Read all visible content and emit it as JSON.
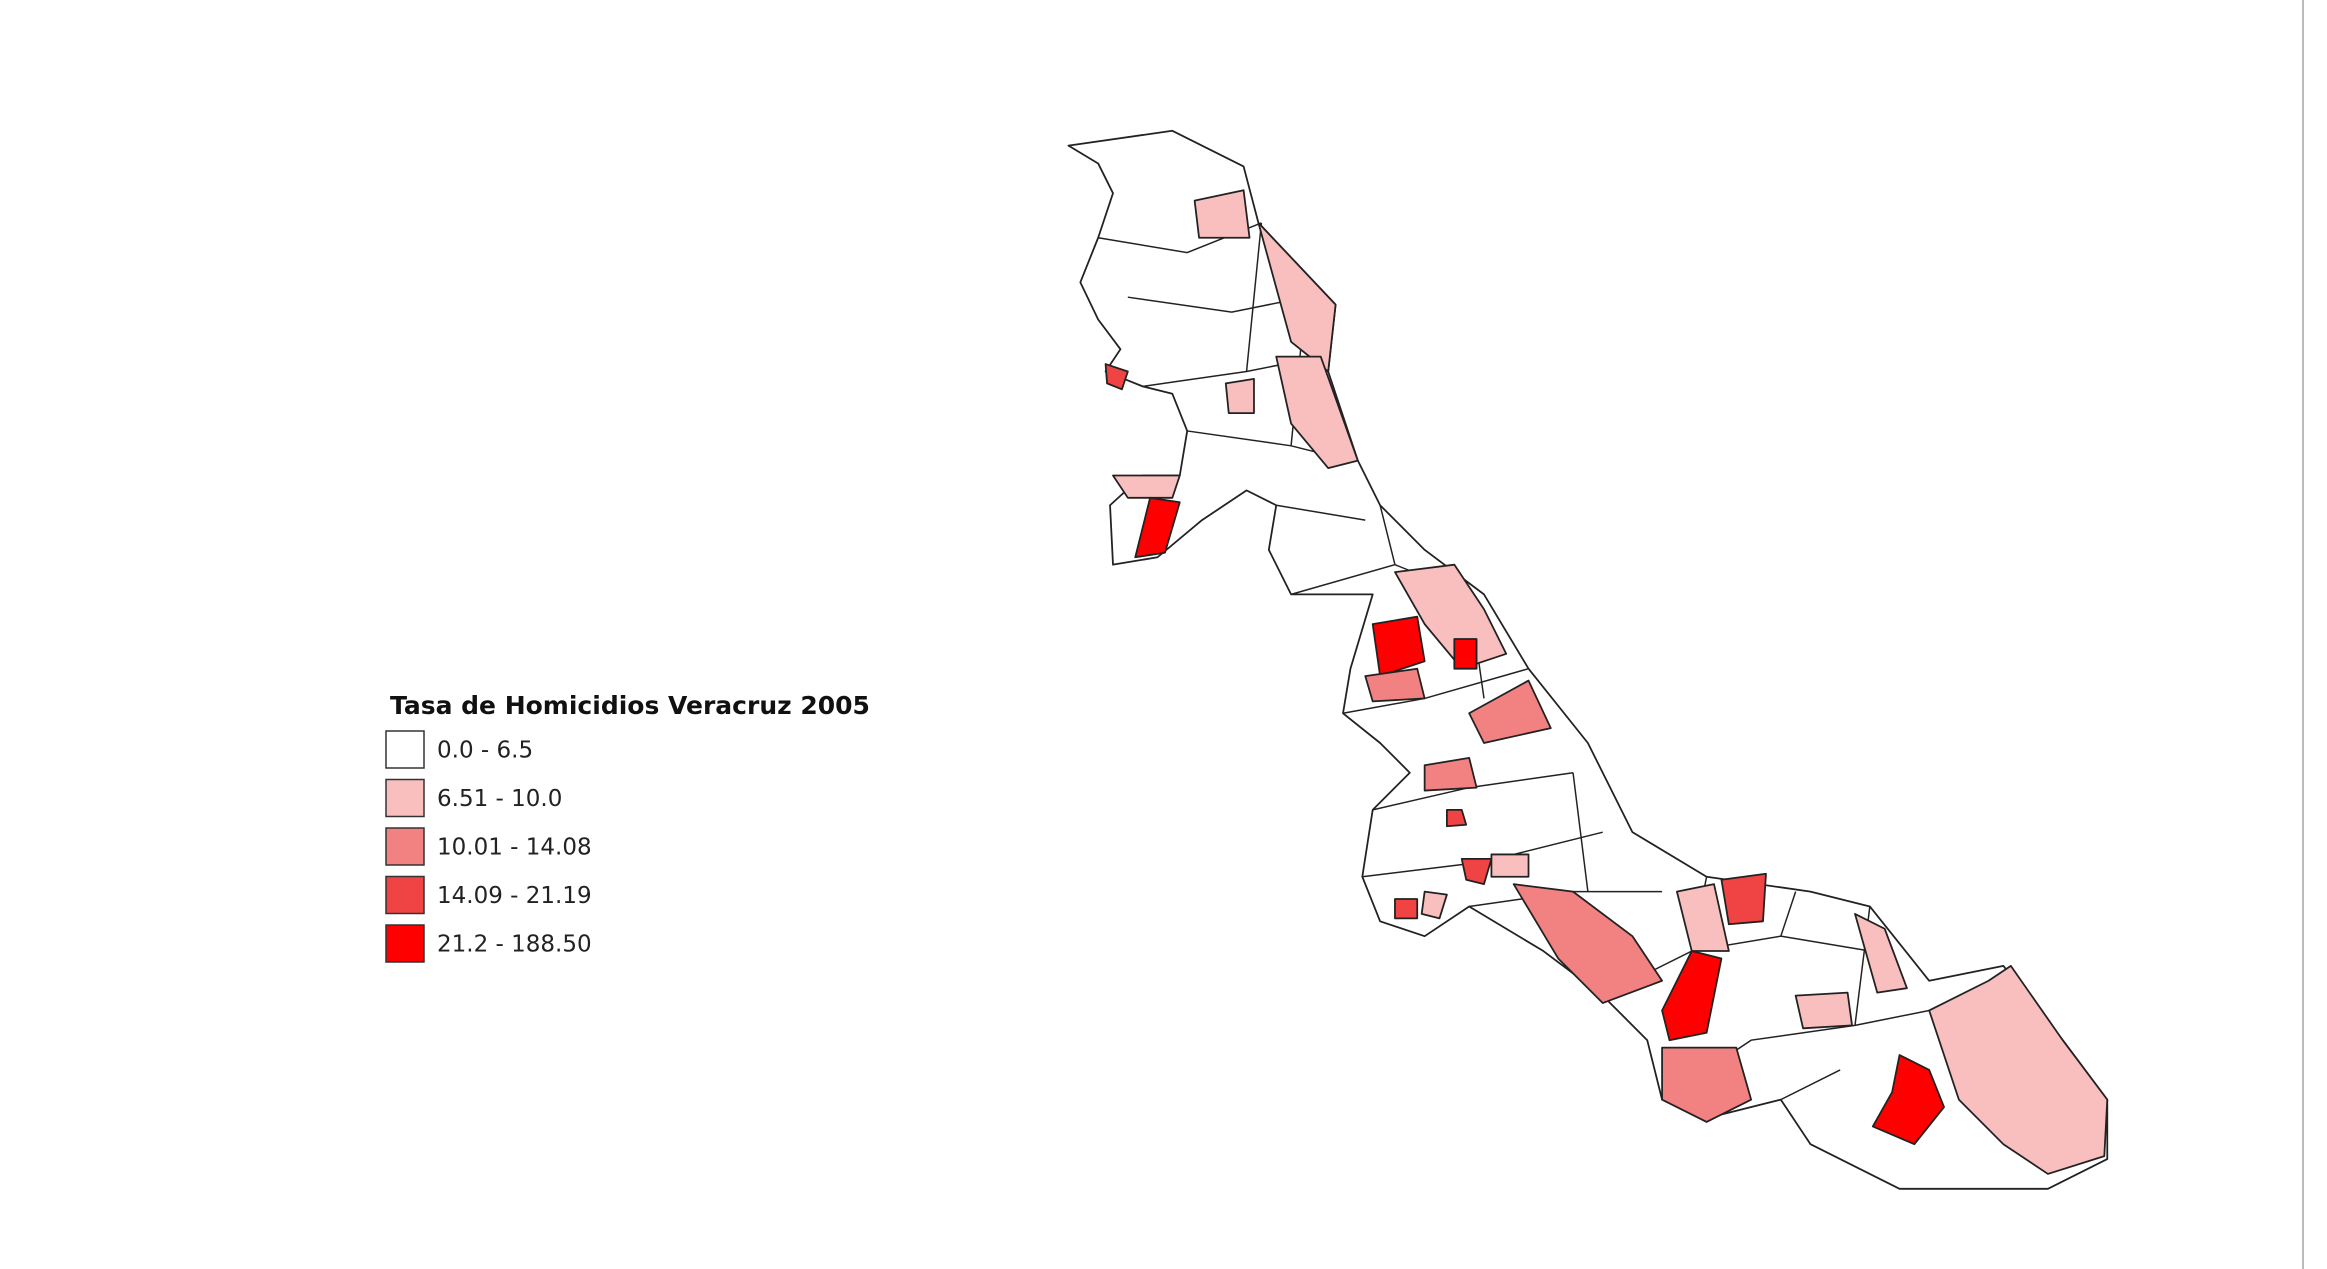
{
  "map": {
    "legend": {
      "title": "Tasa de Homicidios Veracruz 2005",
      "classes": [
        {
          "label": "0.0 - 6.5",
          "color": "#ffffff"
        },
        {
          "label": "6.51 - 10.0",
          "color": "#f9bfbf"
        },
        {
          "label": "10.01 - 14.08",
          "color": "#f28282"
        },
        {
          "label": "14.09 - 21.19",
          "color": "#f04444"
        },
        {
          "label": "21.2 - 188.50",
          "color": "#ff0000"
        }
      ]
    }
  }
}
